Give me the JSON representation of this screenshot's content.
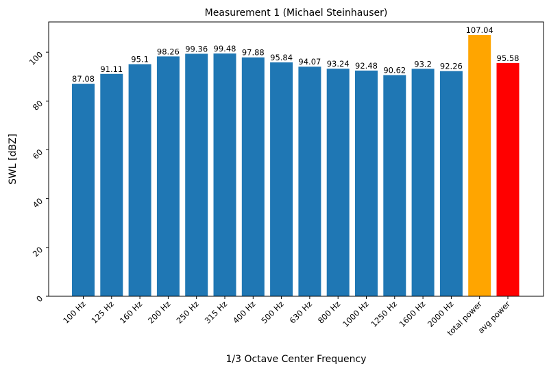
{
  "chart_data": {
    "type": "bar",
    "title": "Measurement 1 (Michael Steinhauser)",
    "xlabel": "1/3 Octave Center Frequency",
    "ylabel": "SWL [dBZ]",
    "categories": [
      "100 Hz",
      "125 Hz",
      "160 Hz",
      "200 Hz",
      "250 Hz",
      "315 Hz",
      "400 Hz",
      "500 Hz",
      "630 Hz",
      "800 Hz",
      "1000 Hz",
      "1250 Hz",
      "1600 Hz",
      "2000 Hz",
      "total power",
      "avg power"
    ],
    "values": [
      87.08,
      91.11,
      95.1,
      98.26,
      99.36,
      99.48,
      97.88,
      95.84,
      94.07,
      93.24,
      92.48,
      90.62,
      93.2,
      92.26,
      107.04,
      95.58
    ],
    "value_labels": [
      "87.08",
      "91.11",
      "95.1",
      "98.26",
      "99.36",
      "99.48",
      "97.88",
      "95.84",
      "94.07",
      "93.24",
      "92.48",
      "90.62",
      "93.2",
      "92.26",
      "107.04",
      "95.58"
    ],
    "colors": [
      "#1f77b4",
      "#1f77b4",
      "#1f77b4",
      "#1f77b4",
      "#1f77b4",
      "#1f77b4",
      "#1f77b4",
      "#1f77b4",
      "#1f77b4",
      "#1f77b4",
      "#1f77b4",
      "#1f77b4",
      "#1f77b4",
      "#1f77b4",
      "#ffa500",
      "#ff0000"
    ],
    "ylim": [
      0,
      112.4
    ],
    "yticks": [
      0,
      20,
      40,
      60,
      80,
      100
    ],
    "ytick_labels": [
      "0",
      "20",
      "40",
      "60",
      "80",
      "100"
    ],
    "grid": false,
    "legend": "none"
  }
}
